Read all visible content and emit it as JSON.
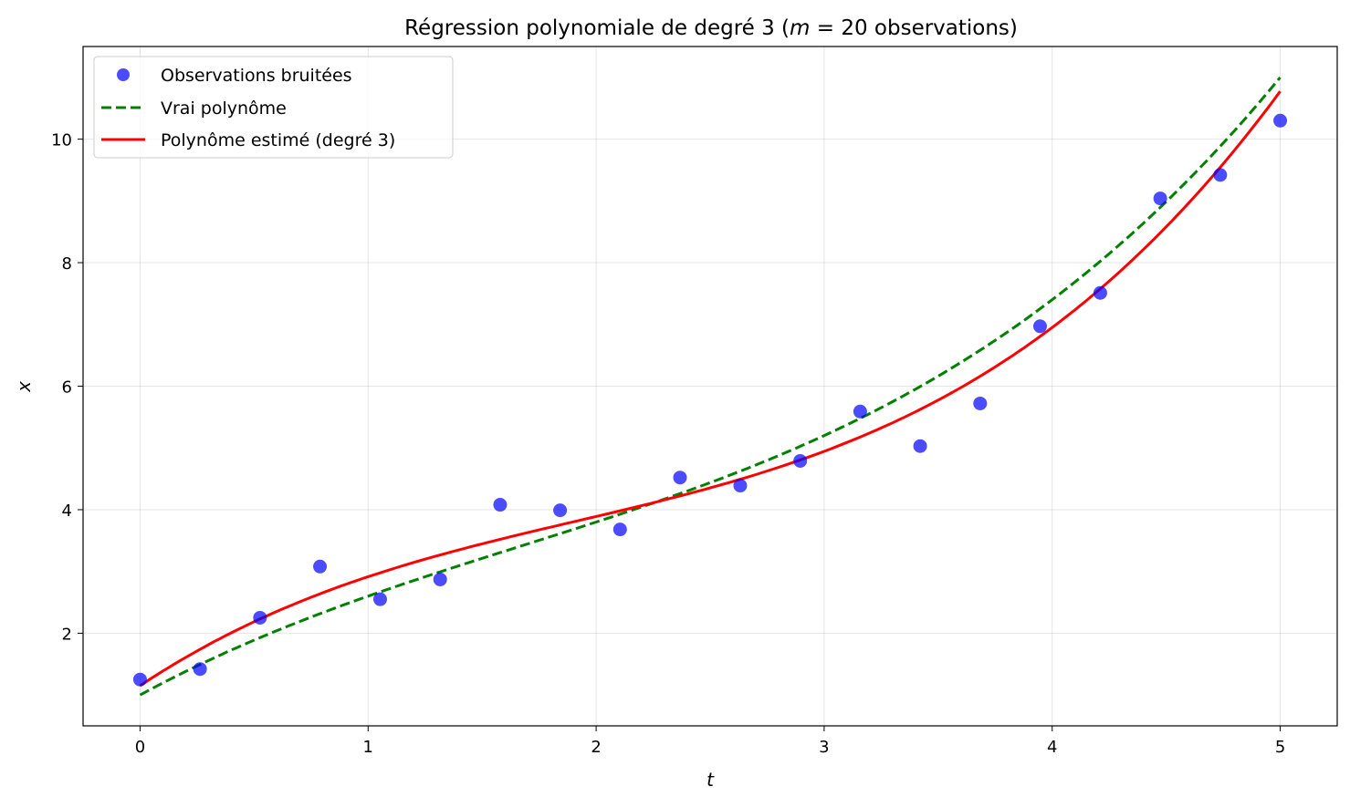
{
  "chart_data": {
    "type": "scatter",
    "title": {
      "prefix": "Régression polynomiale de degré 3 (",
      "var": "m",
      "suffix": " = 20 observations)"
    },
    "xlabel": "t",
    "ylabel": "x",
    "xlim": [
      -0.25,
      5.25
    ],
    "ylim": [
      0.5,
      11.5
    ],
    "xticks": [
      0,
      1,
      2,
      3,
      4,
      5
    ],
    "yticks": [
      2,
      4,
      6,
      8,
      10
    ],
    "grid": true,
    "legend_position": "top-left",
    "series": [
      {
        "name": "Observations bruitées",
        "kind": "scatter",
        "color": "#0000ff",
        "x": [
          0,
          0.263,
          0.526,
          0.789,
          1.053,
          1.316,
          1.579,
          1.842,
          2.105,
          2.368,
          2.632,
          2.895,
          3.158,
          3.421,
          3.684,
          3.947,
          4.211,
          4.474,
          4.737,
          5.0
        ],
        "y": [
          1.25,
          1.42,
          2.25,
          3.08,
          2.55,
          2.87,
          4.08,
          3.99,
          3.68,
          4.52,
          4.39,
          4.79,
          5.59,
          5.03,
          5.72,
          6.97,
          7.51,
          9.04,
          9.42,
          10.3
        ]
      },
      {
        "name": "Vrai polynôme",
        "kind": "line",
        "style": "dashed",
        "color": "#008000",
        "coefficients": [
          1,
          2,
          -0.5,
          0.1
        ]
      },
      {
        "name": "Polynôme estimé (degré 3)",
        "kind": "line",
        "style": "solid",
        "color": "#ff0000",
        "coefficients": [
          1.15,
          2.45,
          -0.83,
          0.145
        ]
      }
    ]
  }
}
